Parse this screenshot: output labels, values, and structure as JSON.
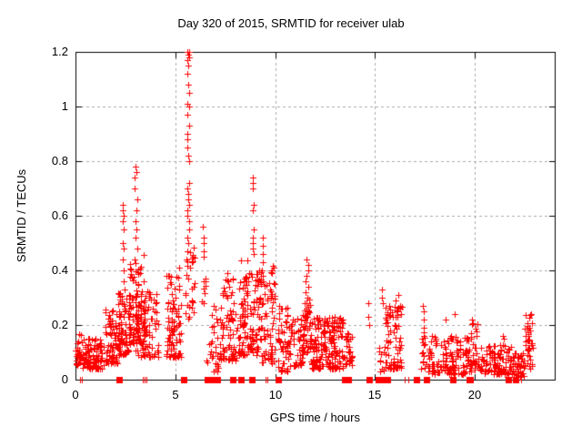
{
  "chart_data": {
    "type": "scatter",
    "title": "Day 320 of 2015, SRMTID for receiver ulab",
    "xlabel": "GPS time / hours",
    "ylabel": "SRMTID / TECUs",
    "xlim": [
      0,
      24
    ],
    "ylim": [
      0,
      1.2
    ],
    "xticks": {
      "values": [
        0,
        5,
        10,
        15,
        20
      ],
      "labels": [
        "0",
        "5",
        "10",
        "15",
        "20"
      ]
    },
    "yticks": {
      "values": [
        0,
        0.2,
        0.4,
        0.6,
        0.8,
        1.0,
        1.2
      ],
      "labels": [
        "0",
        "0.2",
        "0.4",
        "0.6",
        "0.8",
        "1",
        "1.2"
      ]
    },
    "grid": {
      "on": true,
      "color": "#aaaaaa",
      "dash": [
        3,
        3
      ]
    },
    "legend": "none",
    "marker": {
      "glyph": "plus-icon",
      "color": "#ff0000",
      "size": 7
    },
    "zero_marker": {
      "glyph": "filled-square-icon",
      "color": "#ff0000",
      "size": 7
    },
    "axis_color": "#000000",
    "seed": 20151120,
    "clusters": [
      {
        "t0": 0.0,
        "t1": 0.3,
        "v0": 0.05,
        "v1": 0.17,
        "n": 30,
        "bias": 1.3
      },
      {
        "t0": 0.3,
        "t1": 1.45,
        "v0": 0.04,
        "v1": 0.15,
        "n": 95,
        "bias": 1.4
      },
      {
        "t0": 1.45,
        "t1": 2.1,
        "v0": 0.06,
        "v1": 0.26,
        "n": 70,
        "bias": 1.5
      },
      {
        "t0": 2.1,
        "t1": 2.7,
        "v0": 0.09,
        "v1": 0.32,
        "n": 80,
        "bias": 1.4
      },
      {
        "t0": 2.7,
        "t1": 3.5,
        "v0": 0.13,
        "v1": 0.46,
        "n": 100,
        "bias": 1.4
      },
      {
        "t0": 3.0,
        "t1": 4.15,
        "v0": 0.08,
        "v1": 0.33,
        "n": 80,
        "bias": 1.5
      },
      {
        "t0": 4.55,
        "t1": 5.3,
        "v0": 0.08,
        "v1": 0.42,
        "n": 90,
        "bias": 1.6
      },
      {
        "t0": 5.5,
        "t1": 5.95,
        "v0": 0.22,
        "v1": 0.5,
        "n": 30,
        "bias": 1.2
      },
      {
        "t0": 6.3,
        "t1": 6.55,
        "v0": 0.18,
        "v1": 0.38,
        "n": 8,
        "bias": 1.0
      },
      {
        "t0": 6.55,
        "t1": 7.15,
        "v0": 0.03,
        "v1": 0.28,
        "n": 28,
        "bias": 1.6
      },
      {
        "t0": 7.2,
        "t1": 8.2,
        "v0": 0.07,
        "v1": 0.38,
        "n": 85,
        "bias": 1.7
      },
      {
        "t0": 8.2,
        "t1": 9.3,
        "v0": 0.09,
        "v1": 0.44,
        "n": 130,
        "bias": 1.6
      },
      {
        "t0": 9.3,
        "t1": 10.0,
        "v0": 0.06,
        "v1": 0.42,
        "n": 70,
        "bias": 1.7
      },
      {
        "t0": 10.15,
        "t1": 10.7,
        "v0": 0.03,
        "v1": 0.27,
        "n": 50,
        "bias": 1.5
      },
      {
        "t0": 10.7,
        "t1": 11.45,
        "v0": 0.05,
        "v1": 0.24,
        "n": 60,
        "bias": 1.5
      },
      {
        "t0": 11.45,
        "t1": 11.8,
        "v0": 0.1,
        "v1": 0.3,
        "n": 35,
        "bias": 1.2
      },
      {
        "t0": 11.8,
        "t1": 13.45,
        "v0": 0.04,
        "v1": 0.23,
        "n": 180,
        "bias": 1.6
      },
      {
        "t0": 13.45,
        "t1": 13.85,
        "v0": 0.04,
        "v1": 0.17,
        "n": 25,
        "bias": 1.3
      },
      {
        "t0": 15.2,
        "t1": 15.5,
        "v0": 0.03,
        "v1": 0.12,
        "n": 10,
        "bias": 1.3
      },
      {
        "t0": 15.5,
        "t1": 16.35,
        "v0": 0.04,
        "v1": 0.27,
        "n": 75,
        "bias": 1.6
      },
      {
        "t0": 17.3,
        "t1": 17.65,
        "v0": 0.04,
        "v1": 0.18,
        "n": 14,
        "bias": 1.3
      },
      {
        "t0": 17.65,
        "t1": 19.65,
        "v0": 0.02,
        "v1": 0.16,
        "n": 125,
        "bias": 1.5
      },
      {
        "t0": 19.65,
        "t1": 20.15,
        "v0": 0.03,
        "v1": 0.21,
        "n": 40,
        "bias": 1.4
      },
      {
        "t0": 20.15,
        "t1": 21.95,
        "v0": 0.02,
        "v1": 0.13,
        "n": 115,
        "bias": 1.4
      },
      {
        "t0": 21.95,
        "t1": 22.45,
        "v0": 0.01,
        "v1": 0.1,
        "n": 40,
        "bias": 1.3
      },
      {
        "t0": 22.45,
        "t1": 22.9,
        "v0": 0.04,
        "v1": 0.24,
        "n": 42,
        "bias": 1.1
      }
    ],
    "columns": [
      {
        "t": 2.4,
        "spread": 0.07,
        "values": [
          0.33,
          0.36,
          0.4,
          0.44,
          0.48,
          0.5,
          0.55,
          0.58,
          0.6,
          0.62,
          0.64
        ]
      },
      {
        "t": 3.02,
        "spread": 0.06,
        "values": [
          0.48,
          0.52,
          0.55,
          0.58,
          0.62,
          0.66,
          0.7,
          0.74,
          0.76,
          0.78
        ]
      },
      {
        "t": 5.65,
        "spread": 0.06,
        "values": [
          0.5,
          0.52,
          0.55,
          0.58,
          0.6,
          0.62,
          0.64,
          0.66,
          0.68,
          0.7,
          0.72,
          0.8,
          0.82,
          0.85,
          0.88,
          0.9,
          0.93,
          0.97,
          1.0,
          1.01,
          1.05,
          1.08,
          1.12,
          1.15,
          1.17,
          1.18,
          1.19,
          1.2,
          1.2,
          1.19
        ]
      },
      {
        "t": 6.4,
        "spread": 0.05,
        "values": [
          0.45,
          0.47,
          0.5,
          0.52,
          0.56
        ]
      },
      {
        "t": 7.65,
        "spread": 0.05,
        "values": [
          0.34,
          0.36,
          0.39
        ]
      },
      {
        "t": 8.9,
        "spread": 0.05,
        "values": [
          0.46,
          0.48,
          0.5,
          0.52,
          0.55,
          0.62,
          0.64,
          0.7,
          0.72,
          0.74
        ]
      },
      {
        "t": 9.35,
        "spread": 0.06,
        "values": [
          0.36,
          0.38,
          0.4,
          0.43,
          0.46,
          0.49,
          0.52
        ]
      },
      {
        "t": 11.58,
        "spread": 0.07,
        "values": [
          0.25,
          0.28,
          0.3,
          0.32,
          0.34,
          0.36,
          0.38,
          0.4,
          0.42,
          0.44
        ]
      },
      {
        "t": 15.4,
        "spread": 0.04,
        "values": [
          0.28,
          0.3,
          0.33
        ]
      },
      {
        "t": 17.45,
        "spread": 0.05,
        "values": [
          0.1,
          0.13,
          0.16,
          0.19,
          0.22,
          0.25,
          0.27
        ]
      }
    ],
    "points": [
      [
        4.85,
        0.25
      ],
      [
        13.6,
        0.17
      ],
      [
        13.62,
        0.15
      ],
      [
        14.65,
        0.28
      ],
      [
        14.68,
        0.23
      ],
      [
        14.72,
        0.2
      ],
      [
        15.35,
        0.3
      ],
      [
        16.05,
        0.29
      ],
      [
        16.15,
        0.31
      ],
      [
        18.55,
        0.22
      ],
      [
        19.0,
        0.24
      ],
      [
        19.85,
        0.22
      ],
      [
        21.4,
        0.16
      ],
      [
        21.45,
        0.15
      ]
    ],
    "zero_squares": [
      2.2,
      5.4,
      6.6,
      6.9,
      7.1,
      7.9,
      8.3,
      8.85,
      10.15,
      13.5,
      13.65,
      14.7,
      15.15,
      15.3,
      15.6,
      17.1,
      17.6,
      18.9,
      19.7,
      21.7,
      22.05
    ],
    "zero_ticks": [
      0.22,
      0.3,
      3.35,
      3.45,
      3.55,
      6.75,
      9.5,
      9.6,
      15.45,
      16.5,
      16.65,
      19.9,
      22.3
    ]
  }
}
